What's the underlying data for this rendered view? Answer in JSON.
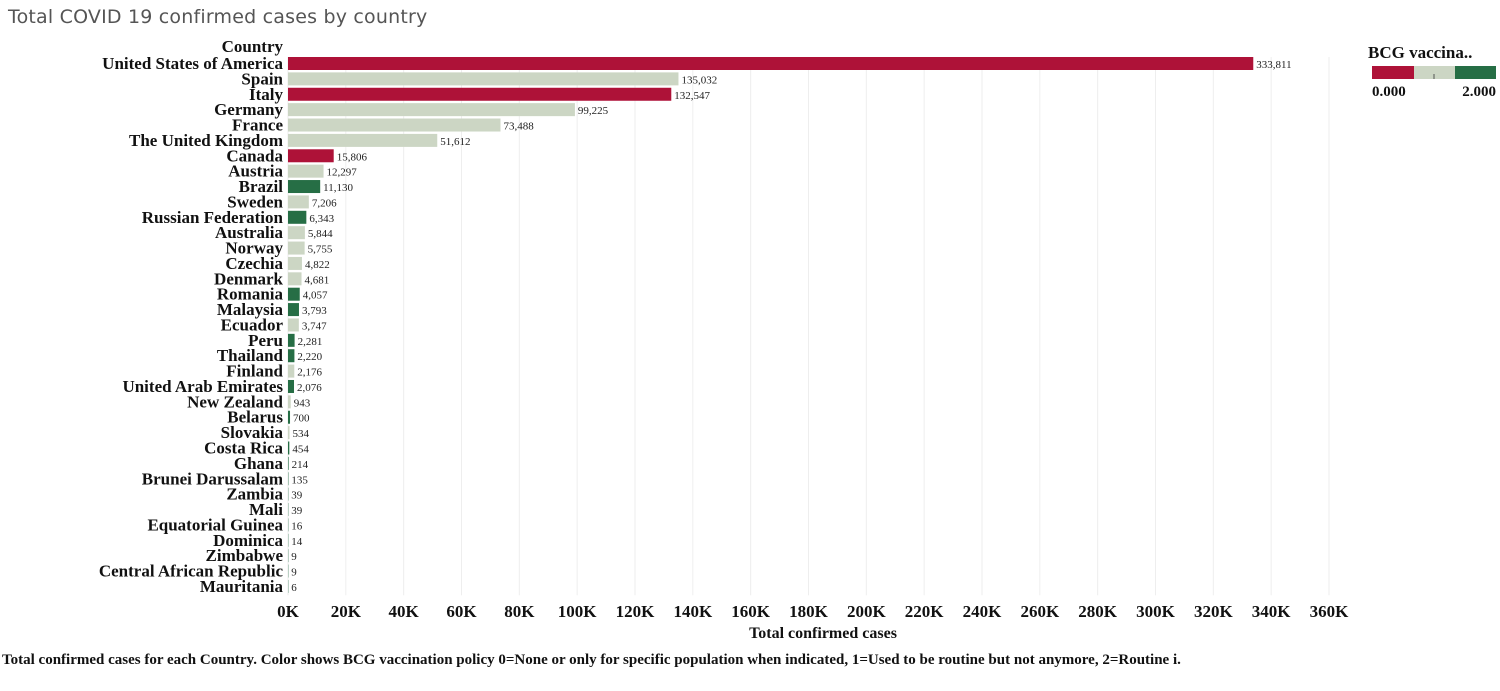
{
  "title": "Total COVID 19 confirmed cases by country",
  "caption": "Total confirmed cases for each Country.  Color shows BCG vaccination policy 0=None or only for specific population when indicated, 1=Used to be routine but not anymore, 2=Routine i.",
  "colors": {
    "policy_0": "#ae1238",
    "policy_1": "#ccd6c4",
    "policy_2": "#266e45",
    "grid": "#eeeeee"
  },
  "legend": {
    "title": "BCG vaccina..",
    "min_label": "0.000",
    "max_label": "2.000"
  },
  "chart_data": {
    "type": "bar",
    "orientation": "horizontal",
    "category_header": "Country",
    "xlabel": "Total confirmed cases",
    "xlim": [
      0,
      360000
    ],
    "xticks": [
      {
        "value": 0,
        "label": "0K"
      },
      {
        "value": 20000,
        "label": "20K"
      },
      {
        "value": 40000,
        "label": "40K"
      },
      {
        "value": 60000,
        "label": "60K"
      },
      {
        "value": 80000,
        "label": "80K"
      },
      {
        "value": 100000,
        "label": "100K"
      },
      {
        "value": 120000,
        "label": "120K"
      },
      {
        "value": 140000,
        "label": "140K"
      },
      {
        "value": 160000,
        "label": "160K"
      },
      {
        "value": 180000,
        "label": "180K"
      },
      {
        "value": 200000,
        "label": "200K"
      },
      {
        "value": 220000,
        "label": "220K"
      },
      {
        "value": 240000,
        "label": "240K"
      },
      {
        "value": 260000,
        "label": "260K"
      },
      {
        "value": 280000,
        "label": "280K"
      },
      {
        "value": 300000,
        "label": "300K"
      },
      {
        "value": 320000,
        "label": "320K"
      },
      {
        "value": 340000,
        "label": "340K"
      },
      {
        "value": 360000,
        "label": "360K"
      }
    ],
    "grid": true,
    "legend_position": "top-right",
    "bars": [
      {
        "country": "United States of America",
        "value": 333811,
        "label": "333,811",
        "policy": 0
      },
      {
        "country": "Spain",
        "value": 135032,
        "label": "135,032",
        "policy": 1
      },
      {
        "country": "Italy",
        "value": 132547,
        "label": "132,547",
        "policy": 0
      },
      {
        "country": "Germany",
        "value": 99225,
        "label": "99,225",
        "policy": 1
      },
      {
        "country": "France",
        "value": 73488,
        "label": "73,488",
        "policy": 1
      },
      {
        "country": "The United Kingdom",
        "value": 51612,
        "label": "51,612",
        "policy": 1
      },
      {
        "country": "Canada",
        "value": 15806,
        "label": "15,806",
        "policy": 0
      },
      {
        "country": "Austria",
        "value": 12297,
        "label": "12,297",
        "policy": 1
      },
      {
        "country": "Brazil",
        "value": 11130,
        "label": "11,130",
        "policy": 2
      },
      {
        "country": "Sweden",
        "value": 7206,
        "label": "7,206",
        "policy": 1
      },
      {
        "country": "Russian Federation",
        "value": 6343,
        "label": "6,343",
        "policy": 2
      },
      {
        "country": "Australia",
        "value": 5844,
        "label": "5,844",
        "policy": 1
      },
      {
        "country": "Norway",
        "value": 5755,
        "label": "5,755",
        "policy": 1
      },
      {
        "country": "Czechia",
        "value": 4822,
        "label": "4,822",
        "policy": 1
      },
      {
        "country": "Denmark",
        "value": 4681,
        "label": "4,681",
        "policy": 1
      },
      {
        "country": "Romania",
        "value": 4057,
        "label": "4,057",
        "policy": 2
      },
      {
        "country": "Malaysia",
        "value": 3793,
        "label": "3,793",
        "policy": 2
      },
      {
        "country": "Ecuador",
        "value": 3747,
        "label": "3,747",
        "policy": 1
      },
      {
        "country": "Peru",
        "value": 2281,
        "label": "2,281",
        "policy": 2
      },
      {
        "country": "Thailand",
        "value": 2220,
        "label": "2,220",
        "policy": 2
      },
      {
        "country": "Finland",
        "value": 2176,
        "label": "2,176",
        "policy": 1
      },
      {
        "country": "United Arab Emirates",
        "value": 2076,
        "label": "2,076",
        "policy": 2
      },
      {
        "country": "New Zealand",
        "value": 943,
        "label": "943",
        "policy": 1
      },
      {
        "country": "Belarus",
        "value": 700,
        "label": "700",
        "policy": 2
      },
      {
        "country": "Slovakia",
        "value": 534,
        "label": "534",
        "policy": 1
      },
      {
        "country": "Costa Rica",
        "value": 454,
        "label": "454",
        "policy": 2
      },
      {
        "country": "Ghana",
        "value": 214,
        "label": "214",
        "policy": 2
      },
      {
        "country": "Brunei Darussalam",
        "value": 135,
        "label": "135",
        "policy": 2
      },
      {
        "country": "Zambia",
        "value": 39,
        "label": "39",
        "policy": 2
      },
      {
        "country": "Mali",
        "value": 39,
        "label": "39",
        "policy": 2
      },
      {
        "country": "Equatorial Guinea",
        "value": 16,
        "label": "16",
        "policy": 2
      },
      {
        "country": "Dominica",
        "value": 14,
        "label": "14",
        "policy": 2
      },
      {
        "country": "Zimbabwe",
        "value": 9,
        "label": "9",
        "policy": 2
      },
      {
        "country": "Central African Republic",
        "value": 9,
        "label": "9",
        "policy": 2
      },
      {
        "country": "Mauritania",
        "value": 6,
        "label": "6",
        "policy": 2
      }
    ]
  }
}
